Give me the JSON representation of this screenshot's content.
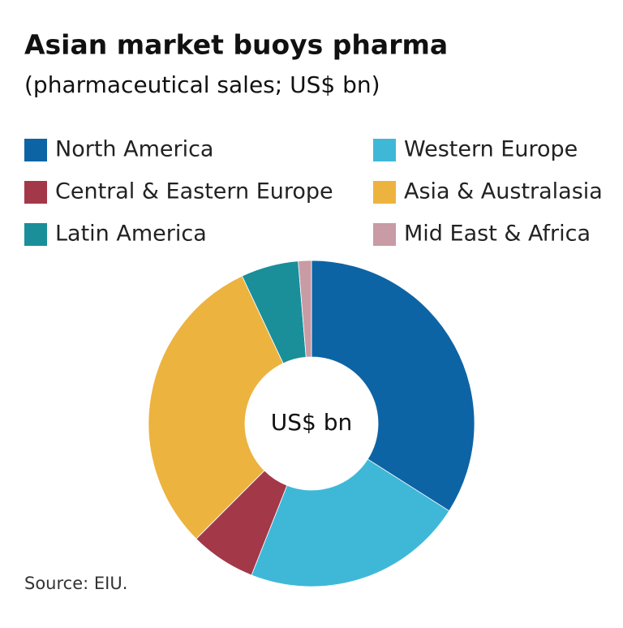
{
  "chart_data": {
    "type": "donut",
    "title": "Asian market buoys pharma",
    "subtitle": "(pharmaceutical sales; US$ bn)",
    "center_label": "US$ bn",
    "source": "Source: EIU.",
    "categories": [
      "North America",
      "Western Europe",
      "Central & Eastern Europe",
      "Asia & Australasia",
      "Latin America",
      "Mid East & Africa"
    ],
    "values": [
      34,
      22,
      6.5,
      30.5,
      5.7,
      1.3
    ],
    "colors": [
      "#0d64a5",
      "#3fb8d8",
      "#a33849",
      "#ecb33f",
      "#1a8f9a",
      "#c89ba5"
    ]
  }
}
